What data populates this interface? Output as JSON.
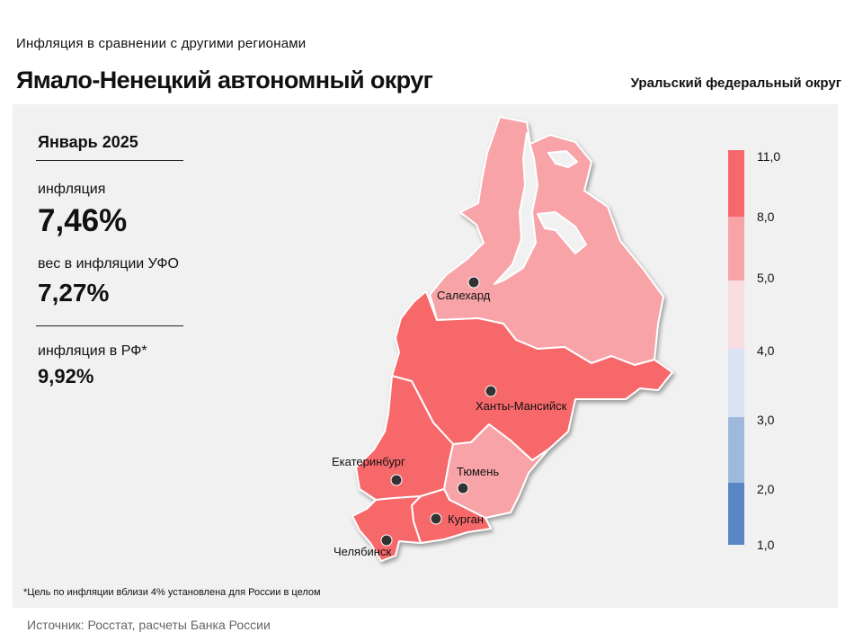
{
  "header": {
    "subtitle": "Инфляция  в сравнении  с другими  регионами",
    "title": "Ямало-Ненецкий автономный округ",
    "district": "Уральский федеральный округ"
  },
  "stats": {
    "period": "Январь 2025",
    "inflation_label": "инфляция",
    "inflation_value": "7,46%",
    "weight_label": "вес в инфляции  УФО",
    "weight_value": "7,27%",
    "rf_label": "инфляция  в РФ*",
    "rf_value": "9,92%"
  },
  "legend": {
    "ticks": [
      "11,0",
      "8,0",
      "5,0",
      "4,0",
      "3,0",
      "2,0",
      "1,0"
    ],
    "colors": [
      "#f7676b",
      "#f7a3a8",
      "#f9dde0",
      "#dae3f3",
      "#9fb9dd",
      "#5b86c5"
    ]
  },
  "regions": [
    {
      "name": "Ямало-Ненецкий автономный округ",
      "color_range": "5,0–8,0",
      "color": "#f7a3a8"
    },
    {
      "name": "Ханты-Мансийский автономный округ",
      "color_range": "8,0–11,0",
      "color": "#f7676b"
    },
    {
      "name": "Свердловская область",
      "color_range": "8,0–11,0",
      "color": "#f7676b"
    },
    {
      "name": "Тюменская область",
      "color_range": "5,0–8,0",
      "color": "#f7a3a8"
    },
    {
      "name": "Курганская область",
      "color_range": "8,0–11,0",
      "color": "#f7676b"
    },
    {
      "name": "Челябинская область",
      "color_range": "8,0–11,0",
      "color": "#f7676b"
    }
  ],
  "cities": [
    "Салехард",
    "Ханты-Мансийск",
    "Екатеринбург",
    "Тюмень",
    "Курган",
    "Челябинск"
  ],
  "footnote": "*Цель по инфляции вблизи 4% установлена для России в целом",
  "source": "Источник: Росстат, расчеты Банка России"
}
